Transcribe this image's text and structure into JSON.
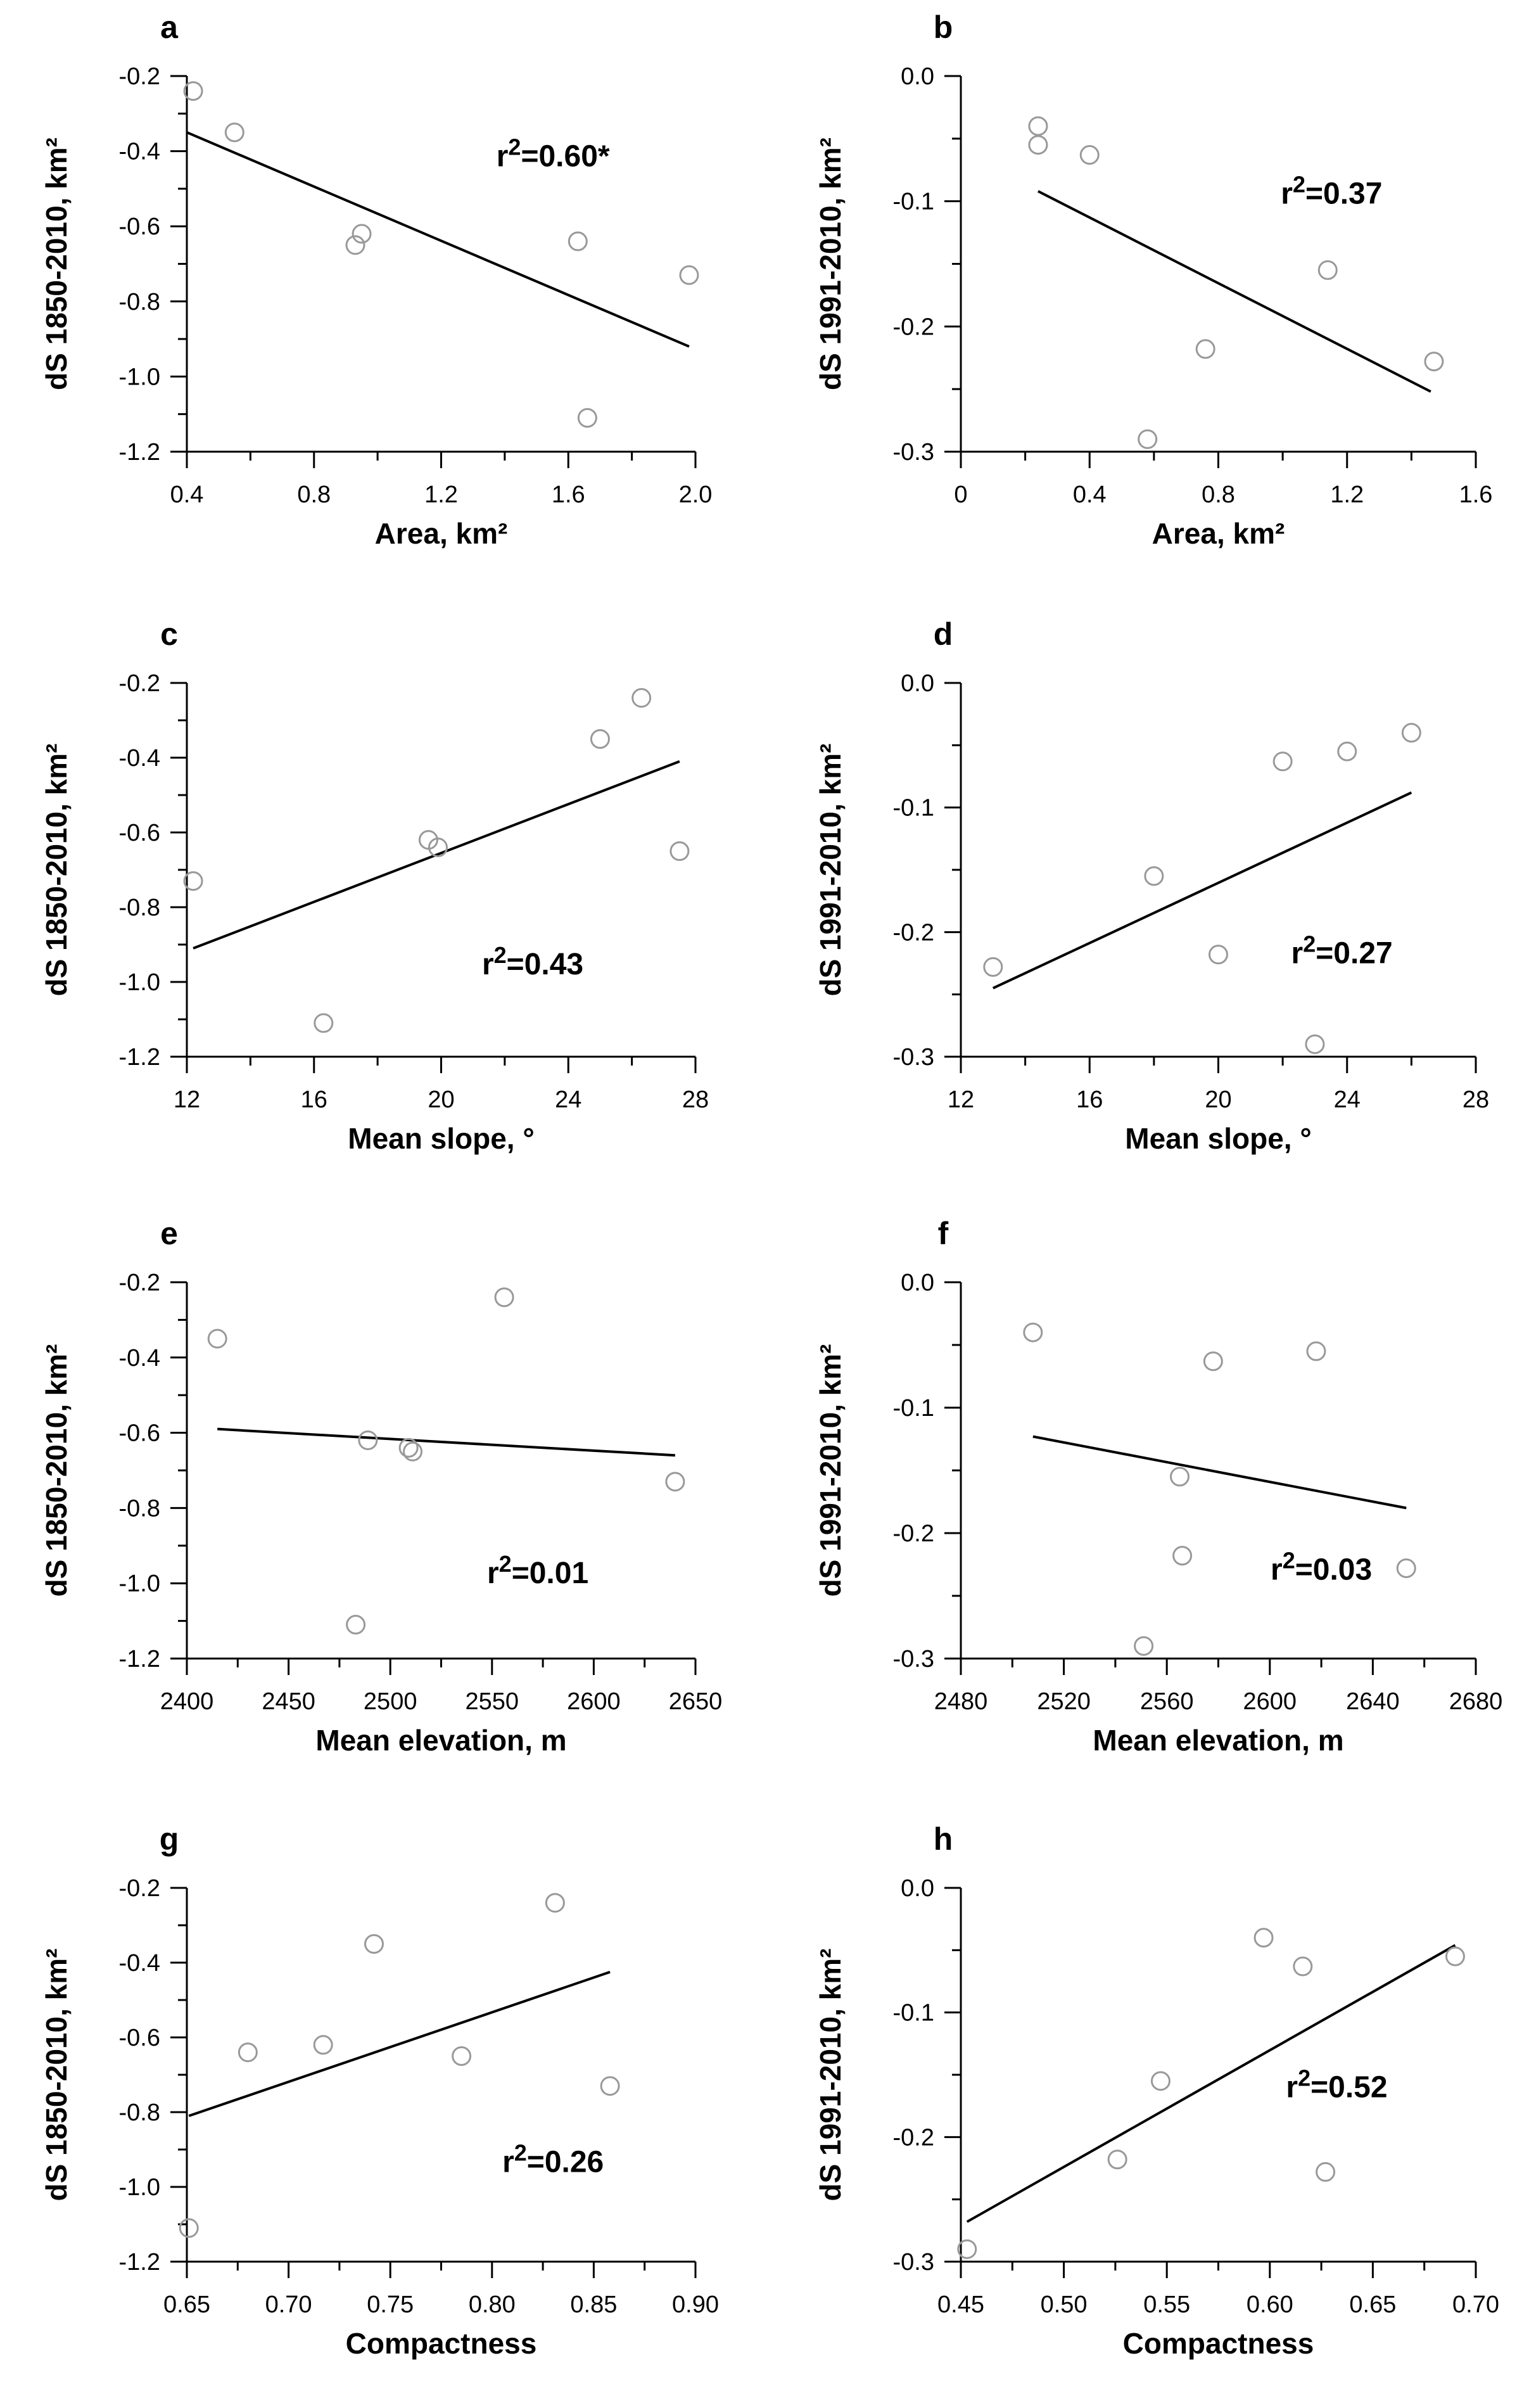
{
  "chart_data": [
    {
      "panel": "a",
      "type": "scatter",
      "xlabel": "Area, km²",
      "ylabel": "dS 1850-2010, km²",
      "xlim": [
        0.4,
        2.0
      ],
      "ylim": [
        -1.2,
        -0.2
      ],
      "xticks": [
        0.4,
        0.8,
        1.2,
        1.6,
        2.0
      ],
      "xtick_labels": [
        "0.4",
        "0.8",
        "1.2",
        "1.6",
        "2.0"
      ],
      "yticks": [
        -0.2,
        -0.4,
        -0.6,
        -0.8,
        -1.0,
        -1.2
      ],
      "ytick_labels": [
        "-0.2",
        "-0.4",
        "-0.6",
        "-0.8",
        "-1.0",
        "-1.2"
      ],
      "points": [
        [
          0.42,
          -0.24
        ],
        [
          0.55,
          -0.35
        ],
        [
          0.93,
          -0.65
        ],
        [
          0.95,
          -0.62
        ],
        [
          1.63,
          -0.64
        ],
        [
          1.66,
          -1.11
        ],
        [
          1.98,
          -0.73
        ]
      ],
      "fit": [
        [
          0.4,
          -0.35
        ],
        [
          1.98,
          -0.92
        ]
      ],
      "r2": {
        "prefix": "r",
        "sup": "2",
        "value": "=0.60*"
      }
    },
    {
      "panel": "b",
      "type": "scatter",
      "xlabel": "Area, km²",
      "ylabel": "dS 1991-2010, km²",
      "xlim": [
        0,
        1.6
      ],
      "ylim": [
        -0.3,
        0.0
      ],
      "xticks": [
        0,
        0.4,
        0.8,
        1.2,
        1.6
      ],
      "xtick_labels": [
        "0",
        "0.4",
        "0.8",
        "1.2",
        "1.6"
      ],
      "yticks": [
        0.0,
        -0.1,
        -0.2,
        -0.3
      ],
      "ytick_labels": [
        "0.0",
        "-0.1",
        "-0.2",
        "-0.3"
      ],
      "points": [
        [
          0.24,
          -0.04
        ],
        [
          0.24,
          -0.055
        ],
        [
          0.4,
          -0.063
        ],
        [
          0.58,
          -0.29
        ],
        [
          0.76,
          -0.218
        ],
        [
          1.14,
          -0.155
        ],
        [
          1.47,
          -0.228
        ]
      ],
      "fit": [
        [
          0.24,
          -0.092
        ],
        [
          1.46,
          -0.252
        ]
      ],
      "r2": {
        "prefix": "r",
        "sup": "2",
        "value": "=0.37"
      }
    },
    {
      "panel": "c",
      "type": "scatter",
      "xlabel": "Mean slope, °",
      "ylabel": "dS 1850-2010, km²",
      "xlim": [
        12,
        28
      ],
      "ylim": [
        -1.2,
        -0.2
      ],
      "xticks": [
        12,
        16,
        20,
        24,
        28
      ],
      "xtick_labels": [
        "12",
        "16",
        "20",
        "24",
        "28"
      ],
      "yticks": [
        -0.2,
        -0.4,
        -0.6,
        -0.8,
        -1.0,
        -1.2
      ],
      "ytick_labels": [
        "-0.2",
        "-0.4",
        "-0.6",
        "-0.8",
        "-1.0",
        "-1.2"
      ],
      "points": [
        [
          12.2,
          -0.73
        ],
        [
          16.3,
          -1.11
        ],
        [
          19.6,
          -0.62
        ],
        [
          19.9,
          -0.64
        ],
        [
          25.0,
          -0.35
        ],
        [
          26.3,
          -0.24
        ],
        [
          27.5,
          -0.65
        ]
      ],
      "fit": [
        [
          12.2,
          -0.91
        ],
        [
          27.5,
          -0.41
        ]
      ],
      "r2": {
        "prefix": "r",
        "sup": "2",
        "value": "=0.43"
      }
    },
    {
      "panel": "d",
      "type": "scatter",
      "xlabel": "Mean slope, °",
      "ylabel": "dS 1991-2010, km²",
      "xlim": [
        12,
        28
      ],
      "ylim": [
        -0.3,
        0.0
      ],
      "xticks": [
        12,
        16,
        20,
        24,
        28
      ],
      "xtick_labels": [
        "12",
        "16",
        "20",
        "24",
        "28"
      ],
      "yticks": [
        0.0,
        -0.1,
        -0.2,
        -0.3
      ],
      "ytick_labels": [
        "0.0",
        "-0.1",
        "-0.2",
        "-0.3"
      ],
      "points": [
        [
          13.0,
          -0.228
        ],
        [
          18.0,
          -0.155
        ],
        [
          20.0,
          -0.218
        ],
        [
          22.0,
          -0.063
        ],
        [
          23.0,
          -0.29
        ],
        [
          24.0,
          -0.055
        ],
        [
          26.0,
          -0.04
        ]
      ],
      "fit": [
        [
          13.0,
          -0.245
        ],
        [
          26.0,
          -0.088
        ]
      ],
      "r2": {
        "prefix": "r",
        "sup": "2",
        "value": "=0.27"
      }
    },
    {
      "panel": "e",
      "type": "scatter",
      "xlabel": "Mean elevation, m",
      "ylabel": "dS 1850-2010, km²",
      "xlim": [
        2400,
        2650
      ],
      "ylim": [
        -1.2,
        -0.2
      ],
      "xticks": [
        2400,
        2450,
        2500,
        2550,
        2600,
        2650
      ],
      "xtick_labels": [
        "2400",
        "2450",
        "2500",
        "2550",
        "2600",
        "2650"
      ],
      "yticks": [
        -0.2,
        -0.4,
        -0.6,
        -0.8,
        -1.0,
        -1.2
      ],
      "ytick_labels": [
        "-0.2",
        "-0.4",
        "-0.6",
        "-0.8",
        "-1.0",
        "-1.2"
      ],
      "points": [
        [
          2415,
          -0.35
        ],
        [
          2483,
          -1.11
        ],
        [
          2489,
          -0.62
        ],
        [
          2509,
          -0.64
        ],
        [
          2511,
          -0.65
        ],
        [
          2556,
          -0.24
        ],
        [
          2640,
          -0.73
        ]
      ],
      "fit": [
        [
          2415,
          -0.59
        ],
        [
          2640,
          -0.66
        ]
      ],
      "r2": {
        "prefix": "r",
        "sup": "2",
        "value": "=0.01"
      }
    },
    {
      "panel": "f",
      "type": "scatter",
      "xlabel": "Mean elevation, m",
      "ylabel": "dS 1991-2010, km²",
      "xlim": [
        2480,
        2680
      ],
      "ylim": [
        -0.3,
        0.0
      ],
      "xticks": [
        2480,
        2520,
        2560,
        2600,
        2640,
        2680
      ],
      "xtick_labels": [
        "2480",
        "2520",
        "2560",
        "2600",
        "2640",
        "2680"
      ],
      "yticks": [
        0.0,
        -0.1,
        -0.2,
        -0.3
      ],
      "ytick_labels": [
        "0.0",
        "-0.1",
        "-0.2",
        "-0.3"
      ],
      "points": [
        [
          2508,
          -0.04
        ],
        [
          2551,
          -0.29
        ],
        [
          2565,
          -0.155
        ],
        [
          2566,
          -0.218
        ],
        [
          2578,
          -0.063
        ],
        [
          2618,
          -0.055
        ],
        [
          2653,
          -0.228
        ]
      ],
      "fit": [
        [
          2508,
          -0.123
        ],
        [
          2653,
          -0.18
        ]
      ],
      "r2": {
        "prefix": "r",
        "sup": "2",
        "value": "=0.03"
      }
    },
    {
      "panel": "g",
      "type": "scatter",
      "xlabel": "Compactness",
      "ylabel": "dS 1850-2010, km²",
      "xlim": [
        0.65,
        0.9
      ],
      "ylim": [
        -1.2,
        -0.2
      ],
      "xticks": [
        0.65,
        0.7,
        0.75,
        0.8,
        0.85,
        0.9
      ],
      "xtick_labels": [
        "0.65",
        "0.70",
        "0.75",
        "0.80",
        "0.85",
        "0.90"
      ],
      "yticks": [
        -0.2,
        -0.4,
        -0.6,
        -0.8,
        -1.0,
        -1.2
      ],
      "ytick_labels": [
        "-0.2",
        "-0.4",
        "-0.6",
        "-0.8",
        "-1.0",
        "-1.2"
      ],
      "points": [
        [
          0.651,
          -1.11
        ],
        [
          0.68,
          -0.64
        ],
        [
          0.717,
          -0.62
        ],
        [
          0.742,
          -0.35
        ],
        [
          0.785,
          -0.65
        ],
        [
          0.831,
          -0.24
        ],
        [
          0.858,
          -0.73
        ]
      ],
      "fit": [
        [
          0.651,
          -0.81
        ],
        [
          0.858,
          -0.425
        ]
      ],
      "r2": {
        "prefix": "r",
        "sup": "2",
        "value": "=0.26"
      }
    },
    {
      "panel": "h",
      "type": "scatter",
      "xlabel": "Compactness",
      "ylabel": "dS 1991-2010, km²",
      "xlim": [
        0.45,
        0.7
      ],
      "ylim": [
        -0.3,
        0.0
      ],
      "xticks": [
        0.45,
        0.5,
        0.55,
        0.6,
        0.65,
        0.7
      ],
      "xtick_labels": [
        "0.45",
        "0.50",
        "0.55",
        "0.60",
        "0.65",
        "0.70"
      ],
      "yticks": [
        0.0,
        -0.1,
        -0.2,
        -0.3
      ],
      "ytick_labels": [
        "0.0",
        "-0.1",
        "-0.2",
        "-0.3"
      ],
      "points": [
        [
          0.453,
          -0.29
        ],
        [
          0.526,
          -0.218
        ],
        [
          0.547,
          -0.155
        ],
        [
          0.597,
          -0.04
        ],
        [
          0.616,
          -0.063
        ],
        [
          0.627,
          -0.228
        ],
        [
          0.69,
          -0.055
        ]
      ],
      "fit": [
        [
          0.453,
          -0.268
        ],
        [
          0.69,
          -0.046
        ]
      ],
      "r2": {
        "prefix": "r",
        "sup": "2",
        "value": "=0.52"
      }
    }
  ]
}
